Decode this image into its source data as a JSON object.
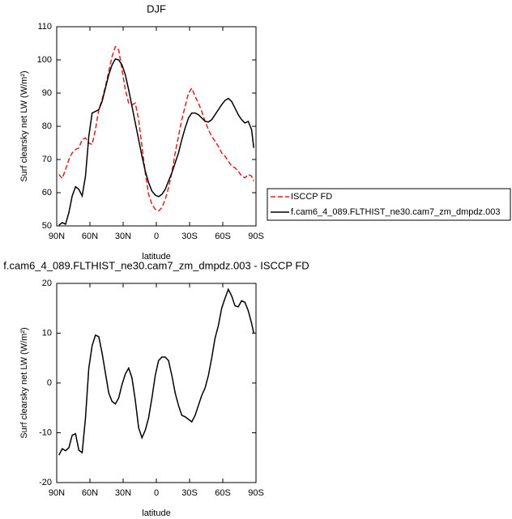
{
  "chart_data": [
    {
      "type": "line",
      "title": "DJF",
      "xlabel": "latitude",
      "ylabel": "Surf clearsky net LW (W/m²)",
      "x": [
        88,
        85,
        82,
        79,
        76,
        73,
        70,
        67,
        64,
        61,
        58,
        55,
        52,
        49,
        46,
        43,
        40,
        37,
        34,
        31,
        28,
        25,
        22,
        19,
        16,
        13,
        10,
        7,
        4,
        1,
        -2,
        -5,
        -8,
        -11,
        -14,
        -17,
        -20,
        -23,
        -26,
        -29,
        -32,
        -35,
        -38,
        -41,
        -44,
        -47,
        -50,
        -53,
        -56,
        -59,
        -62,
        -65,
        -68,
        -71,
        -74,
        -77,
        -80,
        -83,
        -86,
        -88
      ],
      "series": [
        {
          "name": "ISCCP FD",
          "color": "#e0201b",
          "linestyle": "dashed",
          "values": [
            65.5,
            64.3,
            67,
            70,
            72,
            73,
            73.5,
            76,
            76.5,
            75,
            74.5,
            79,
            85,
            88,
            92,
            96.5,
            101,
            104,
            103,
            97,
            91,
            87,
            86.5,
            87,
            82,
            74,
            66,
            59.5,
            56.5,
            55,
            54.5,
            55.5,
            58,
            61.5,
            66,
            72,
            77,
            82,
            86,
            90,
            91.5,
            89,
            87,
            84.5,
            81.5,
            79,
            77,
            75.5,
            74,
            72,
            71,
            69.5,
            68,
            67.5,
            66.5,
            65,
            64.5,
            65.5,
            65,
            63.5
          ]
        },
        {
          "name": "f.cam6_4_089.FLTHIST_ne30.cam7_zm_dmpdz.003",
          "color": "#000000",
          "linestyle": "solid",
          "values": [
            50.2,
            51,
            50.5,
            54,
            59,
            61.8,
            61,
            59,
            65,
            77,
            84,
            84.5,
            85,
            87.5,
            91.5,
            95.5,
            98.5,
            100.3,
            100,
            98.5,
            95.5,
            91,
            86,
            81,
            76,
            71,
            66.5,
            63,
            60.5,
            59.3,
            58.8,
            59.5,
            61,
            63.5,
            66,
            69,
            72,
            76,
            79.5,
            82.5,
            84,
            84,
            83.5,
            82.5,
            81.5,
            81.3,
            82,
            83.5,
            85,
            86.5,
            87.8,
            88.4,
            87.5,
            85.5,
            83.5,
            82,
            81,
            81.5,
            79,
            73.5
          ]
        }
      ],
      "xlim": [
        90,
        -90
      ],
      "xticks": [
        {
          "value": 90,
          "label": "90N"
        },
        {
          "value": 60,
          "label": "60N"
        },
        {
          "value": 30,
          "label": "30N"
        },
        0,
        {
          "value": -30,
          "label": "30S"
        },
        {
          "value": -60,
          "label": "60S"
        },
        {
          "value": -90,
          "label": "90S"
        }
      ],
      "ylim": [
        50,
        110
      ],
      "yticks": [
        50,
        60,
        70,
        80,
        90,
        100,
        110
      ],
      "legend": "right"
    },
    {
      "type": "line",
      "title": "f.cam6_4_089.FLTHIST_ne30.cam7_zm_dmpdz.003 - ISCCP FD",
      "xlabel": "latitude",
      "ylabel": "Surf clearsky net LW (W/m²)",
      "x": [
        88,
        85,
        82,
        79,
        76,
        73,
        70,
        67,
        64,
        61,
        58,
        55,
        52,
        49,
        46,
        43,
        40,
        37,
        34,
        31,
        28,
        25,
        22,
        19,
        16,
        13,
        10,
        7,
        4,
        1,
        -2,
        -5,
        -8,
        -11,
        -14,
        -17,
        -20,
        -23,
        -26,
        -29,
        -32,
        -35,
        -38,
        -41,
        -44,
        -47,
        -50,
        -53,
        -56,
        -59,
        -62,
        -65,
        -68,
        -71,
        -74,
        -77,
        -80,
        -83,
        -86,
        -88
      ],
      "values": [
        -14.5,
        -13.2,
        -13.6,
        -13,
        -10.5,
        -10.2,
        -13.5,
        -14,
        -7,
        3,
        7.5,
        9.6,
        9.3,
        6,
        2,
        -2,
        -3.7,
        -4.2,
        -3,
        -0.3,
        1.8,
        3,
        1,
        -3.5,
        -9,
        -11,
        -9.5,
        -7,
        -3,
        1.5,
        4.5,
        5.2,
        5.2,
        4.5,
        1.5,
        -2,
        -4.5,
        -6.5,
        -6.8,
        -7.3,
        -7.8,
        -6.5,
        -4.5,
        -2.5,
        -1,
        1.5,
        5,
        9,
        11.5,
        15,
        17,
        18.8,
        17.5,
        15.5,
        15.3,
        16.5,
        16.2,
        14.5,
        12,
        10
      ],
      "color": "#000000",
      "xlim": [
        90,
        -90
      ],
      "xticks": [
        {
          "value": 90,
          "label": "90N"
        },
        {
          "value": 60,
          "label": "60N"
        },
        {
          "value": 30,
          "label": "30N"
        },
        0,
        {
          "value": -30,
          "label": "30S"
        },
        {
          "value": -60,
          "label": "60S"
        },
        {
          "value": -90,
          "label": "90S"
        }
      ],
      "ylim": [
        -20,
        20
      ],
      "yticks": [
        -20,
        -10,
        0,
        10,
        20
      ]
    }
  ]
}
